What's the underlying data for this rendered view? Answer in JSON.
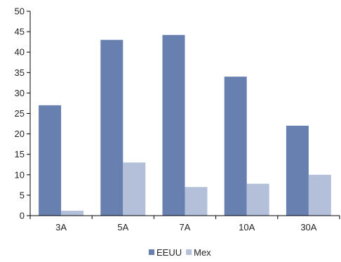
{
  "chart_data": {
    "type": "bar",
    "categories": [
      "3A",
      "5A",
      "7A",
      "10A",
      "30A"
    ],
    "series": [
      {
        "name": "EEUU",
        "values": [
          27,
          43,
          44.2,
          34,
          22
        ],
        "color": "#6880b0"
      },
      {
        "name": "Mex",
        "values": [
          1.2,
          13,
          7,
          7.8,
          10
        ],
        "color": "#b4c0da"
      }
    ],
    "title": "",
    "xlabel": "",
    "ylabel": "",
    "ylim": [
      0,
      50
    ],
    "yticks": [
      0,
      5,
      10,
      15,
      20,
      25,
      30,
      35,
      40,
      45,
      50
    ],
    "grid": false,
    "legend_position": "bottom",
    "axis_color": "#000000"
  }
}
